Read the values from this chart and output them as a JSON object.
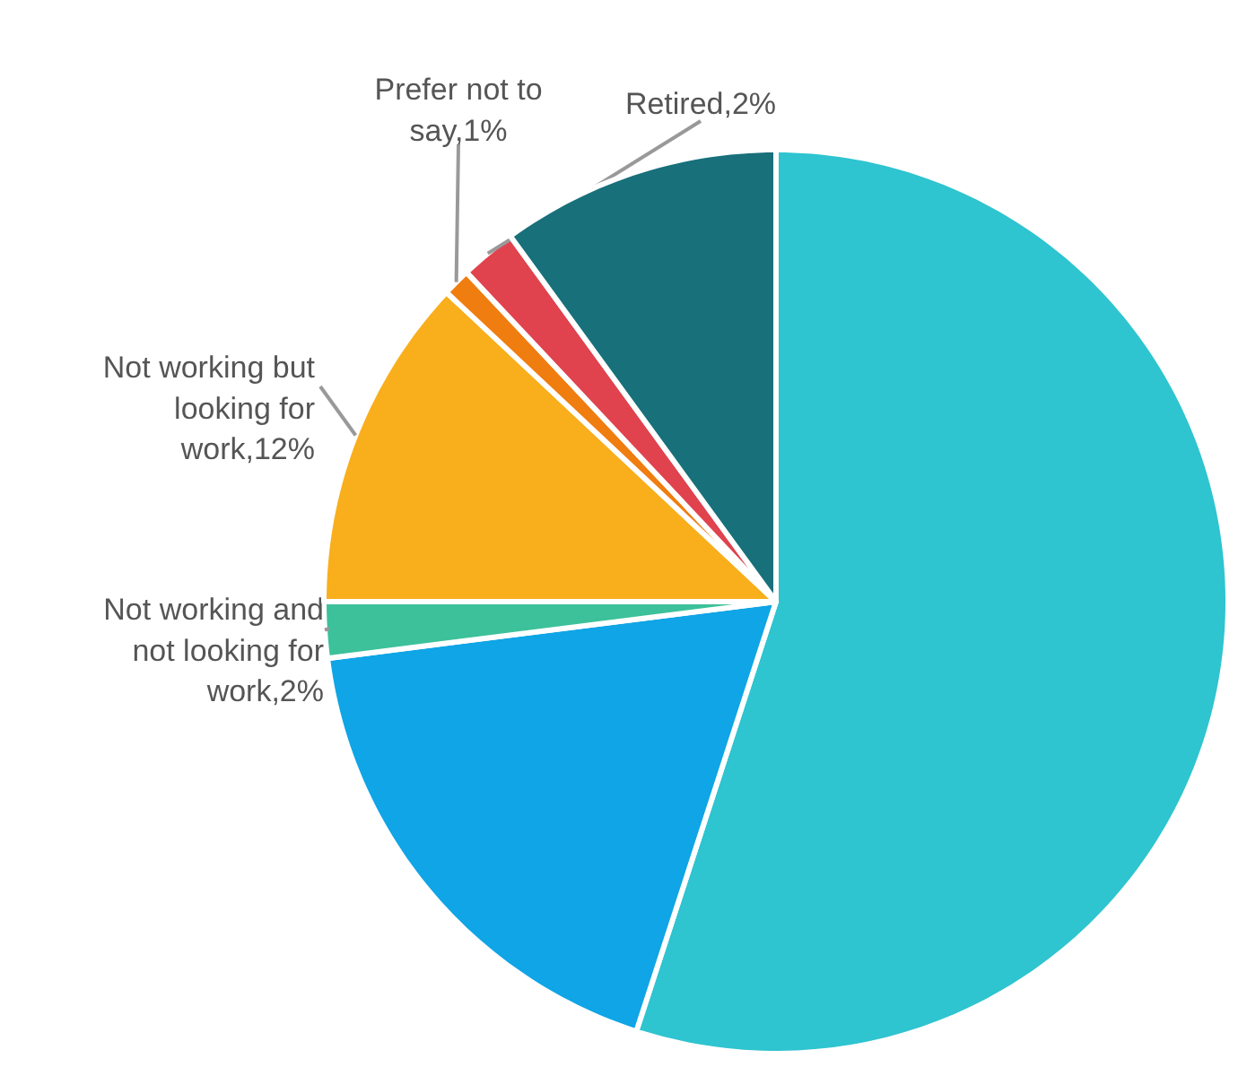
{
  "chart_data": {
    "type": "pie",
    "categories": [
      null,
      null,
      "Not working and not looking for work,2%",
      "Not working but looking for work,12%",
      "Prefer not to say,1%",
      "Retired,2%",
      null
    ],
    "values": [
      55,
      18,
      2,
      12,
      1,
      2,
      10
    ],
    "colors": [
      "#2ec4d0",
      "#0fa5e6",
      "#3cc19a",
      "#f9ae1c",
      "#f07d0f",
      "#e0434e",
      "#17707a"
    ]
  }
}
